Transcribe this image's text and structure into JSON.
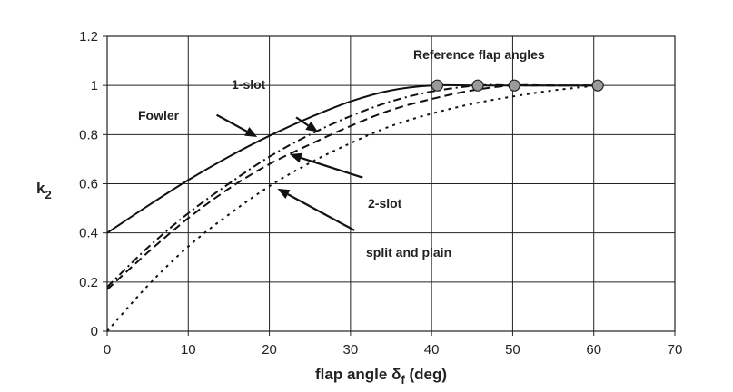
{
  "chart_data": {
    "type": "line",
    "xlabel": "flap angle δf (deg)",
    "xlabel_parts": {
      "main": "flap angle δ",
      "sub": "f",
      "unit": " (deg)"
    },
    "ylabel": "k2",
    "ylabel_parts": {
      "main": "k",
      "sub": "2"
    },
    "xlim": [
      0,
      70
    ],
    "ylim": [
      0,
      1.2
    ],
    "x_ticks": [
      0,
      10,
      20,
      30,
      40,
      50,
      60,
      70
    ],
    "x_tick_labels": [
      "0",
      "10",
      "20",
      "30",
      "40",
      "50",
      "60",
      "70"
    ],
    "y_ticks": [
      0,
      0.2,
      0.4,
      0.6,
      0.8,
      1.0,
      1.2
    ],
    "y_tick_labels": [
      "0",
      "0.2",
      "0.4",
      "0.6",
      "0.8",
      "1",
      "1.2"
    ],
    "grid": true,
    "series": [
      {
        "name": "Fowler",
        "dash": "solid",
        "x": [
          0,
          5,
          10,
          15,
          20,
          25,
          30,
          35,
          40,
          45,
          50,
          55,
          60
        ],
        "y": [
          0.4,
          0.51,
          0.615,
          0.71,
          0.795,
          0.87,
          0.935,
          0.98,
          1.0,
          1.0,
          1.0,
          1.0,
          1.0
        ]
      },
      {
        "name": "1-slot",
        "dash": "dash-dot",
        "x": [
          0,
          5,
          10,
          15,
          20,
          25,
          30,
          35,
          40,
          45.7,
          50,
          55,
          60
        ],
        "y": [
          0.18,
          0.34,
          0.48,
          0.6,
          0.71,
          0.8,
          0.875,
          0.935,
          0.975,
          1.0,
          1.0,
          1.0,
          1.0
        ]
      },
      {
        "name": "2-slot",
        "dash": "dash",
        "x": [
          0,
          5,
          10,
          15,
          20,
          25,
          30,
          35,
          40,
          45,
          50,
          55,
          60
        ],
        "y": [
          0.17,
          0.32,
          0.46,
          0.58,
          0.68,
          0.76,
          0.835,
          0.9,
          0.945,
          0.98,
          1.0,
          1.0,
          1.0
        ]
      },
      {
        "name": "split and plain",
        "dash": "dot",
        "x": [
          0,
          5,
          10,
          15,
          20,
          25,
          30,
          35,
          40,
          45,
          50,
          55,
          60.5
        ],
        "y": [
          0.0,
          0.185,
          0.345,
          0.475,
          0.59,
          0.685,
          0.765,
          0.835,
          0.885,
          0.925,
          0.955,
          0.98,
          1.0
        ]
      }
    ],
    "reference_points": [
      {
        "x": 40.7,
        "y": 1.0
      },
      {
        "x": 45.7,
        "y": 1.0
      },
      {
        "x": 50.2,
        "y": 1.0
      },
      {
        "x": 60.5,
        "y": 1.0
      }
    ],
    "annotations": [
      {
        "text": "Reference flap angles"
      },
      {
        "text": "1-slot",
        "arrow_tail": [
          23.3,
          0.87
        ],
        "arrow_head": [
          26,
          0.81
        ]
      },
      {
        "text": "Fowler",
        "arrow_tail": [
          13.5,
          0.88
        ],
        "arrow_head": [
          18.5,
          0.79
        ]
      },
      {
        "text": "2-slot",
        "arrow_tail": [
          31.5,
          0.625
        ],
        "arrow_head": [
          22.5,
          0.72
        ]
      },
      {
        "text": "split and plain",
        "arrow_tail": [
          30.5,
          0.41
        ],
        "arrow_head": [
          21,
          0.58
        ]
      }
    ]
  }
}
